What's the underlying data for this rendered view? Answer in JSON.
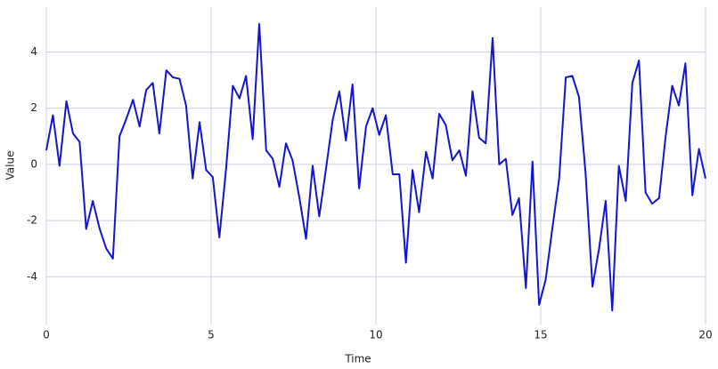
{
  "chart_data": {
    "type": "line",
    "xlabel": "Time",
    "ylabel": "Value",
    "x": [
      0,
      0.2,
      0.4,
      0.61,
      0.81,
      1.01,
      1.21,
      1.41,
      1.62,
      1.82,
      2.02,
      2.22,
      2.42,
      2.63,
      2.83,
      3.03,
      3.23,
      3.43,
      3.64,
      3.84,
      4.04,
      4.24,
      4.44,
      4.65,
      4.85,
      5.05,
      5.25,
      5.45,
      5.66,
      5.86,
      6.06,
      6.26,
      6.46,
      6.67,
      6.87,
      7.07,
      7.27,
      7.47,
      7.68,
      7.88,
      8.08,
      8.28,
      8.48,
      8.69,
      8.89,
      9.09,
      9.29,
      9.49,
      9.7,
      9.9,
      10.1,
      10.3,
      10.51,
      10.71,
      10.91,
      11.11,
      11.31,
      11.52,
      11.72,
      11.92,
      12.12,
      12.32,
      12.53,
      12.73,
      12.93,
      13.13,
      13.33,
      13.54,
      13.74,
      13.94,
      14.14,
      14.34,
      14.55,
      14.75,
      14.95,
      15.15,
      15.35,
      15.56,
      15.76,
      15.96,
      16.16,
      16.36,
      16.57,
      16.77,
      16.97,
      17.17,
      17.37,
      17.58,
      17.78,
      17.98,
      18.18,
      18.38,
      18.59,
      18.79,
      18.99,
      19.19,
      19.39,
      19.6,
      19.8,
      20
    ],
    "series": [
      {
        "name": "Value",
        "color": "#1414cc",
        "values": [
          0.5,
          1.75,
          -0.05,
          2.25,
          1.1,
          0.8,
          -2.3,
          -1.3,
          -2.3,
          -3.0,
          -3.35,
          1.0,
          1.6,
          2.3,
          1.35,
          2.65,
          2.9,
          1.1,
          3.35,
          3.1,
          3.05,
          2.1,
          -0.5,
          1.5,
          -0.2,
          -0.45,
          -2.6,
          -0.2,
          2.8,
          2.35,
          3.15,
          0.9,
          5.0,
          0.5,
          0.2,
          -0.8,
          0.75,
          0.15,
          -1.2,
          -2.65,
          -0.05,
          -1.85,
          -0.2,
          1.6,
          2.6,
          0.85,
          2.85,
          -0.85,
          1.35,
          2.0,
          1.05,
          1.75,
          -0.35,
          -0.35,
          -3.5,
          -0.2,
          -1.7,
          0.45,
          -0.5,
          1.8,
          1.4,
          0.15,
          0.5,
          -0.4,
          2.6,
          0.95,
          0.75,
          4.5,
          0.0,
          0.2,
          -1.8,
          -1.2,
          -4.4,
          0.1,
          -5.0,
          -4.1,
          -2.3,
          -0.5,
          3.1,
          3.15,
          2.4,
          -0.3,
          -4.35,
          -3.0,
          -1.3,
          -5.2,
          -0.05,
          -1.3,
          2.9,
          3.7,
          -1.0,
          -1.4,
          -1.2,
          1.0,
          2.8,
          2.1,
          3.6,
          -1.1,
          0.55,
          -0.5
        ]
      }
    ],
    "xlim": [
      0,
      20
    ],
    "xticks": [
      0,
      5,
      10,
      15,
      20
    ],
    "ylim": [
      -5.7,
      5.6
    ],
    "yticks": [
      -4,
      -2,
      0,
      2,
      4
    ],
    "grid": true
  }
}
